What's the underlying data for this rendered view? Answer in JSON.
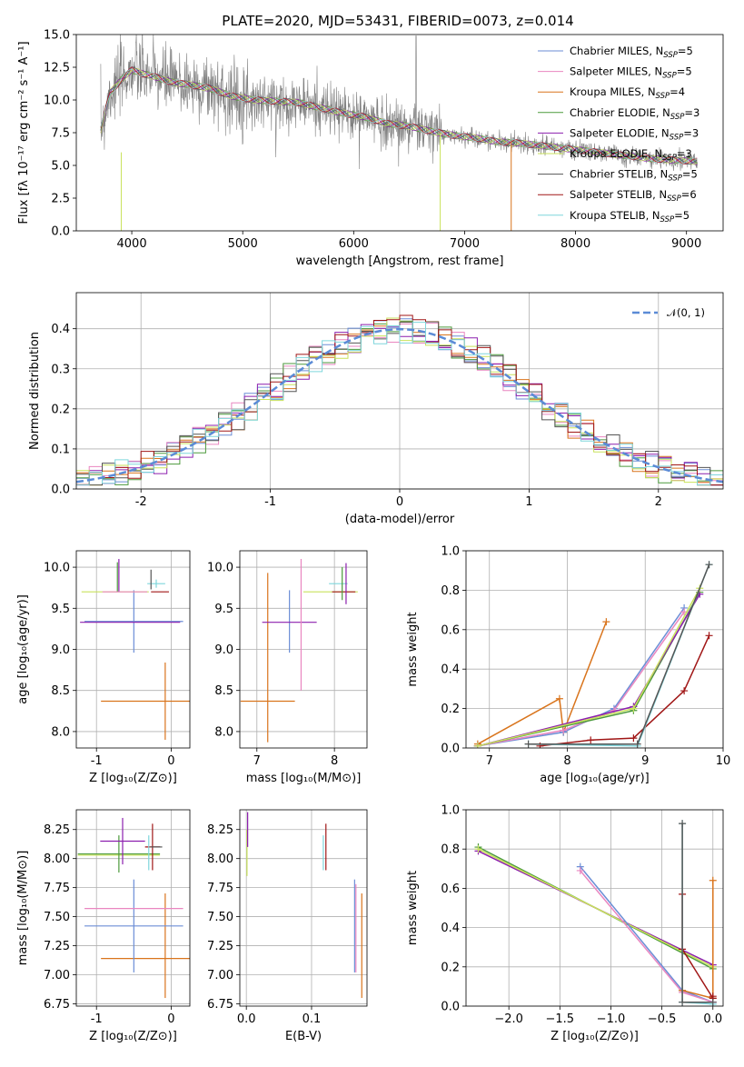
{
  "title": "PLATE=2020, MJD=53431, FIBERID=0073, z=0.014",
  "colors": {
    "Chabrier MILES": "#6b8ed6",
    "Salpeter MILES": "#e986c0",
    "Kroupa MILES": "#d9741c",
    "Chabrier ELODIE": "#4c9a3c",
    "Salpeter ELODIE": "#8c1fae",
    "Kroupa ELODIE": "#c9e25b",
    "Chabrier STELIB": "#555555",
    "Salpeter STELIB": "#a01616",
    "Kroupa STELIB": "#7fd6dc",
    "data": "#808080",
    "normal": "#5b8bd6"
  },
  "chart_data": [
    {
      "id": "spectrum",
      "type": "line",
      "xlabel": "wavelength [Angstrom, rest frame]",
      "ylabel": "Flux [fλ 10⁻¹⁷ erg cm⁻² s⁻¹ A⁻¹]",
      "xlim": [
        3500,
        9330
      ],
      "ylim": [
        0,
        15
      ],
      "xticks": [
        4000,
        5000,
        6000,
        7000,
        8000,
        9000
      ],
      "yticks": [
        0.0,
        2.5,
        5.0,
        7.5,
        10.0,
        12.5,
        15.0
      ],
      "continuum": [
        [
          3700,
          7.0
        ],
        [
          3800,
          10.5
        ],
        [
          3900,
          11.5
        ],
        [
          4000,
          12.3
        ],
        [
          4100,
          12.0
        ],
        [
          4200,
          11.8
        ],
        [
          4300,
          11.5
        ],
        [
          4400,
          11.3
        ],
        [
          4500,
          11.2
        ],
        [
          4700,
          10.9
        ],
        [
          4900,
          10.3
        ],
        [
          5100,
          10.0
        ],
        [
          5300,
          9.9
        ],
        [
          5500,
          9.8
        ],
        [
          5700,
          9.4
        ],
        [
          5900,
          9.0
        ],
        [
          6100,
          8.7
        ],
        [
          6300,
          8.2
        ],
        [
          6500,
          8.0
        ],
        [
          6700,
          7.6
        ],
        [
          6900,
          7.3
        ],
        [
          7100,
          7.1
        ],
        [
          7300,
          6.8
        ],
        [
          7500,
          6.7
        ],
        [
          7700,
          6.5
        ],
        [
          7900,
          6.3
        ],
        [
          8100,
          6.1
        ],
        [
          8300,
          5.9
        ],
        [
          8500,
          5.7
        ],
        [
          8700,
          5.5
        ],
        [
          8900,
          5.4
        ],
        [
          9100,
          5.3
        ]
      ],
      "legend": [
        {
          "label": "Chabrier MILES, N",
          "n": "5"
        },
        {
          "label": "Salpeter MILES, N",
          "n": "5"
        },
        {
          "label": "Kroupa MILES, N",
          "n": "4"
        },
        {
          "label": "Chabrier ELODIE, N",
          "n": "3"
        },
        {
          "label": "Salpeter ELODIE, N",
          "n": "3"
        },
        {
          "label": "Kroupa ELODIE, N",
          "n": "3"
        },
        {
          "label": "Chabrier STELIB, N",
          "n": "5"
        },
        {
          "label": "Salpeter STELIB, N",
          "n": "6"
        },
        {
          "label": "Kroupa STELIB, N",
          "n": "5"
        }
      ],
      "legend_sub": "SSP",
      "legend_placement": "right"
    },
    {
      "id": "residuals",
      "type": "area",
      "xlabel": "(data-model)/error",
      "ylabel": "Normed distribution",
      "xlim": [
        -2.5,
        2.5
      ],
      "ylim": [
        0,
        0.49
      ],
      "xticks": [
        -2,
        -1,
        0,
        1,
        2
      ],
      "yticks": [
        0.0,
        0.1,
        0.2,
        0.3,
        0.4
      ],
      "legend": "𝒩(0, 1)",
      "legend_placement": "top-right"
    },
    {
      "id": "age_vs_Z",
      "type": "scatter",
      "xlabel": "Z [log₁₀(Z/Z⊙)]",
      "ylabel": "age  [log₁₀(age/yr)]",
      "xlim": [
        -1.27,
        0.25
      ],
      "ylim": [
        7.8,
        10.2
      ],
      "xticks": [
        -1,
        0
      ],
      "yticks": [
        8.0,
        8.5,
        9.0,
        9.5,
        10.0
      ],
      "points": [
        {
          "model": "Kroupa MILES",
          "x": -0.08,
          "y": 8.37,
          "xerr": 0.86,
          "yerr": 0.47
        },
        {
          "model": "Chabrier MILES",
          "x": -0.5,
          "y": 9.34,
          "xerr": 0.66,
          "yerr": 0.38
        },
        {
          "model": "Salpeter ELODIE",
          "x": -0.55,
          "y": 9.33,
          "xerr": 0.67,
          "yerr": 0.0
        },
        {
          "model": "Kroupa ELODIE",
          "x": -0.75,
          "y": 9.7,
          "xerr": 0.45,
          "yerr": 0.0
        },
        {
          "model": "Salpeter ELODIE",
          "x": -0.7,
          "y": 9.9,
          "xerr": 0.0,
          "yerr": 0.2
        },
        {
          "model": "Chabrier ELODIE",
          "x": -0.72,
          "y": 9.88,
          "xerr": 0.0,
          "yerr": 0.18
        },
        {
          "model": "Salpeter STELIB",
          "x": -0.15,
          "y": 9.7,
          "xerr": 0.12,
          "yerr": 0.0
        },
        {
          "model": "Kroupa STELIB",
          "x": -0.2,
          "y": 9.8,
          "xerr": 0.12,
          "yerr": 0.05
        },
        {
          "model": "Chabrier STELIB",
          "x": -0.27,
          "y": 9.85,
          "xerr": 0.0,
          "yerr": 0.12
        },
        {
          "model": "Salpeter MILES",
          "x": -0.62,
          "y": 9.7,
          "xerr": 0.3,
          "yerr": 0.0
        }
      ]
    },
    {
      "id": "age_vs_mass",
      "type": "scatter",
      "xlabel": "mass [log₁₀(M/M⊙)]",
      "ylabel": "",
      "xlim": [
        6.78,
        8.42
      ],
      "ylim": [
        7.8,
        10.2
      ],
      "xticks": [
        7,
        8
      ],
      "yticks": [
        8.0,
        8.5,
        9.0,
        9.5,
        10.0
      ],
      "points": [
        {
          "model": "Kroupa MILES",
          "x": 7.14,
          "y": 8.37,
          "xerr": 0.35,
          "yerr": 0.0
        },
        {
          "model": "Kroupa MILES",
          "x": 7.14,
          "y": 8.9,
          "xerr": 0.0,
          "yerr": 1.03
        },
        {
          "model": "Chabrier MILES",
          "x": 7.42,
          "y": 9.34,
          "xerr": 0.0,
          "yerr": 0.38
        },
        {
          "model": "Salpeter ELODIE",
          "x": 7.42,
          "y": 9.33,
          "xerr": 0.0,
          "yerr": 0.0
        },
        {
          "model": "Salpeter MILES",
          "x": 7.57,
          "y": 9.3,
          "xerr": 0.0,
          "yerr": 0.8
        },
        {
          "model": "Kroupa ELODIE",
          "x": 7.95,
          "y": 9.7,
          "xerr": 0.0,
          "yerr": 0.0
        },
        {
          "model": "Salpeter STELIB",
          "x": 8.12,
          "y": 9.7,
          "xerr": 0.15,
          "yerr": 0.0
        },
        {
          "model": "Kroupa STELIB",
          "x": 8.05,
          "y": 9.8,
          "xerr": 0.12,
          "yerr": 0.0
        },
        {
          "model": "Salpeter ELODIE",
          "x": 8.15,
          "y": 9.8,
          "xerr": 0.0,
          "yerr": 0.25
        },
        {
          "model": "Chabrier ELODIE",
          "x": 8.1,
          "y": 9.8,
          "xerr": 0.0,
          "yerr": 0.2
        }
      ]
    },
    {
      "id": "weight_vs_age",
      "type": "line",
      "xlabel": "age  [log₁₀(age/yr)]",
      "ylabel": "mass weight",
      "xlim": [
        6.7,
        10
      ],
      "ylim": [
        0,
        1
      ],
      "xticks": [
        7,
        8,
        9,
        10
      ],
      "yticks": [
        0.0,
        0.2,
        0.4,
        0.6,
        0.8,
        1.0
      ],
      "series": [
        {
          "model": "Kroupa MILES",
          "x": [
            6.85,
            7.9,
            7.95,
            8.5
          ],
          "y": [
            0.02,
            0.25,
            0.08,
            0.64
          ]
        },
        {
          "model": "Chabrier MILES",
          "x": [
            6.85,
            7.95,
            8.6,
            9.5
          ],
          "y": [
            0.01,
            0.08,
            0.2,
            0.71
          ]
        },
        {
          "model": "Salpeter MILES",
          "x": [
            6.85,
            7.95,
            8.6,
            9.5
          ],
          "y": [
            0.01,
            0.09,
            0.19,
            0.69
          ]
        },
        {
          "model": "Chabrier ELODIE",
          "x": [
            6.85,
            8.85,
            9.7
          ],
          "y": [
            0.01,
            0.19,
            0.79
          ]
        },
        {
          "model": "Salpeter ELODIE",
          "x": [
            6.85,
            8.85,
            9.7
          ],
          "y": [
            0.01,
            0.21,
            0.78
          ]
        },
        {
          "model": "Kroupa ELODIE",
          "x": [
            6.85,
            8.85,
            9.7
          ],
          "y": [
            0.01,
            0.2,
            0.81
          ]
        },
        {
          "model": "Salpeter STELIB",
          "x": [
            7.65,
            8.3,
            8.85,
            9.5,
            9.82
          ],
          "y": [
            0.01,
            0.04,
            0.05,
            0.29,
            0.57
          ]
        },
        {
          "model": "Kroupa STELIB",
          "x": [
            7.5,
            8.9,
            9.82
          ],
          "y": [
            0.02,
            0.01,
            0.93
          ]
        },
        {
          "model": "Chabrier STELIB",
          "x": [
            7.5,
            8.9,
            9.82
          ],
          "y": [
            0.02,
            0.02,
            0.93
          ]
        }
      ]
    },
    {
      "id": "mass_vs_Z",
      "type": "scatter",
      "xlabel": "Z [log₁₀(Z/Z⊙)]",
      "ylabel": "mass [log₁₀(M/M⊙)]",
      "xlim": [
        -1.27,
        0.25
      ],
      "ylim": [
        6.73,
        8.42
      ],
      "xticks": [
        -1,
        0
      ],
      "yticks": [
        6.75,
        7.0,
        7.25,
        7.5,
        7.75,
        8.0,
        8.25
      ],
      "points": [
        {
          "model": "Kroupa MILES",
          "x": -0.08,
          "y": 7.14,
          "xerr": 0.86,
          "yerr": 0.0
        },
        {
          "model": "Kroupa MILES",
          "x": -0.08,
          "y": 7.25,
          "xerr": 0.0,
          "yerr": 0.45
        },
        {
          "model": "Chabrier MILES",
          "x": -0.5,
          "y": 7.42,
          "xerr": 0.66,
          "yerr": 0.4
        },
        {
          "model": "Salpeter MILES",
          "x": -0.5,
          "y": 7.57,
          "xerr": 0.66,
          "yerr": 0.0
        },
        {
          "model": "Kroupa ELODIE",
          "x": -0.7,
          "y": 8.03,
          "xerr": 0.55,
          "yerr": 0.0
        },
        {
          "model": "Chabrier ELODIE",
          "x": -0.7,
          "y": 8.04,
          "xerr": 0.55,
          "yerr": 0.16
        },
        {
          "model": "Salpeter ELODIE",
          "x": -0.65,
          "y": 8.15,
          "xerr": 0.3,
          "yerr": 0.2
        },
        {
          "model": "Salpeter STELIB",
          "x": -0.25,
          "y": 8.1,
          "xerr": 0.1,
          "yerr": 0.2
        },
        {
          "model": "Kroupa STELIB",
          "x": -0.3,
          "y": 8.05,
          "xerr": 0.0,
          "yerr": 0.15
        },
        {
          "model": "Chabrier STELIB",
          "x": -0.2,
          "y": 8.1,
          "xerr": 0.08,
          "yerr": 0.0
        }
      ]
    },
    {
      "id": "mass_vs_ebv",
      "type": "scatter",
      "xlabel": "E(B-V)",
      "ylabel": "",
      "xlim": [
        -0.01,
        0.185
      ],
      "ylim": [
        6.73,
        8.42
      ],
      "xticks": [
        0.0,
        0.1
      ],
      "yticks": [
        6.75,
        7.0,
        7.25,
        7.5,
        7.75,
        8.0,
        8.25
      ],
      "points": [
        {
          "model": "Kroupa MILES",
          "x": 0.177,
          "y": 7.25,
          "xerr": 0.0,
          "yerr": 0.45
        },
        {
          "model": "Chabrier MILES",
          "x": 0.166,
          "y": 7.42,
          "xerr": 0.0,
          "yerr": 0.4
        },
        {
          "model": "Salpeter MILES",
          "x": 0.168,
          "y": 7.4,
          "xerr": 0.0,
          "yerr": 0.38
        },
        {
          "model": "Kroupa ELODIE",
          "x": 0.001,
          "y": 8.05,
          "xerr": 0.0,
          "yerr": 0.2
        },
        {
          "model": "Salpeter ELODIE",
          "x": 0.002,
          "y": 8.25,
          "xerr": 0.0,
          "yerr": 0.15
        },
        {
          "model": "Salpeter STELIB",
          "x": 0.122,
          "y": 8.1,
          "xerr": 0.0,
          "yerr": 0.2
        },
        {
          "model": "Kroupa STELIB",
          "x": 0.118,
          "y": 8.05,
          "xerr": 0.0,
          "yerr": 0.15
        }
      ]
    },
    {
      "id": "weight_vs_Z",
      "type": "line",
      "xlabel": "Z [log₁₀(Z/Z⊙)]",
      "ylabel": "mass weight",
      "xlim": [
        -2.42,
        0.1
      ],
      "ylim": [
        0,
        1
      ],
      "xticks": [
        -2.0,
        -1.5,
        -1.0,
        -0.5,
        0.0
      ],
      "yticks": [
        0.0,
        0.2,
        0.4,
        0.6,
        0.8,
        1.0
      ],
      "series": [
        {
          "model": "Chabrier ELODIE",
          "x": [
            -2.3,
            0.0
          ],
          "y": [
            0.81,
            0.19
          ]
        },
        {
          "model": "Salpeter ELODIE",
          "x": [
            -2.3,
            0.0
          ],
          "y": [
            0.79,
            0.21
          ]
        },
        {
          "model": "Kroupa ELODIE",
          "x": [
            -2.3,
            0.0
          ],
          "y": [
            0.8,
            0.2
          ]
        },
        {
          "model": "Chabrier MILES",
          "x": [
            -1.3,
            -0.3,
            0.0
          ],
          "y": [
            0.71,
            0.08,
            0.02
          ]
        },
        {
          "model": "Salpeter MILES",
          "x": [
            -1.3,
            -0.3,
            0.0
          ],
          "y": [
            0.69,
            0.07,
            0.02
          ]
        },
        {
          "model": "Kroupa MILES",
          "x": [
            0.0,
            0.0,
            -0.3
          ],
          "y": [
            0.64,
            0.04,
            0.08
          ]
        },
        {
          "model": "Salpeter STELIB",
          "x": [
            -0.3,
            -0.3,
            0.0,
            0.0
          ],
          "y": [
            0.57,
            0.29,
            0.04,
            0.05
          ]
        },
        {
          "model": "Kroupa STELIB",
          "x": [
            -0.3,
            -0.3,
            0.0
          ],
          "y": [
            0.93,
            0.02,
            0.01
          ]
        },
        {
          "model": "Chabrier STELIB",
          "x": [
            -0.3,
            -0.3,
            0.0
          ],
          "y": [
            0.93,
            0.02,
            0.02
          ]
        }
      ]
    }
  ]
}
